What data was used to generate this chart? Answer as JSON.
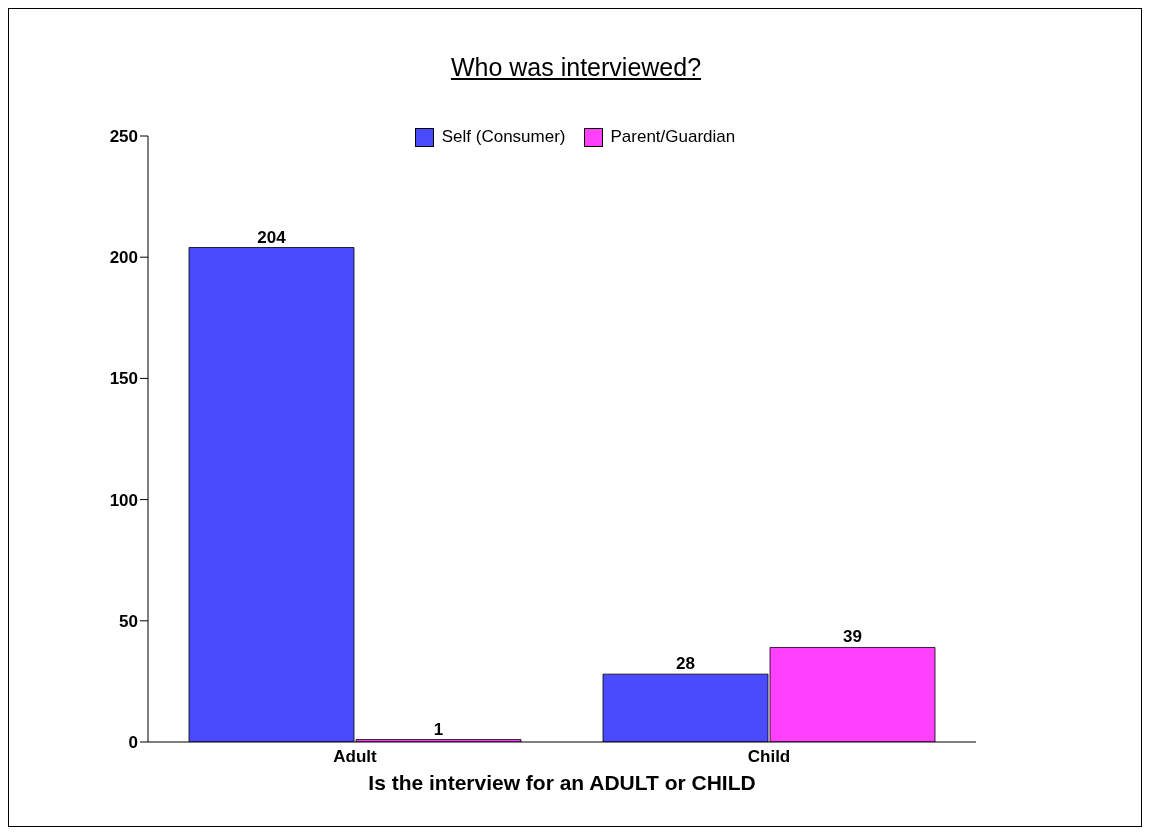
{
  "chart_data": {
    "type": "bar",
    "title": "Who was interviewed?",
    "xlabel": "Is the interview for an ADULT or CHILD",
    "categories": [
      "Adult",
      "Child"
    ],
    "series": [
      {
        "name": "Self (Consumer)",
        "color": "#4a4aff",
        "values": [
          204,
          28
        ]
      },
      {
        "name": "Parent/Guardian",
        "color": "#ff40ff",
        "values": [
          1,
          39
        ]
      }
    ],
    "ylim": [
      0,
      250
    ],
    "yticks": [
      0,
      50,
      100,
      150,
      200,
      250
    ],
    "data_labels": true,
    "legend": "top",
    "grid": false
  }
}
